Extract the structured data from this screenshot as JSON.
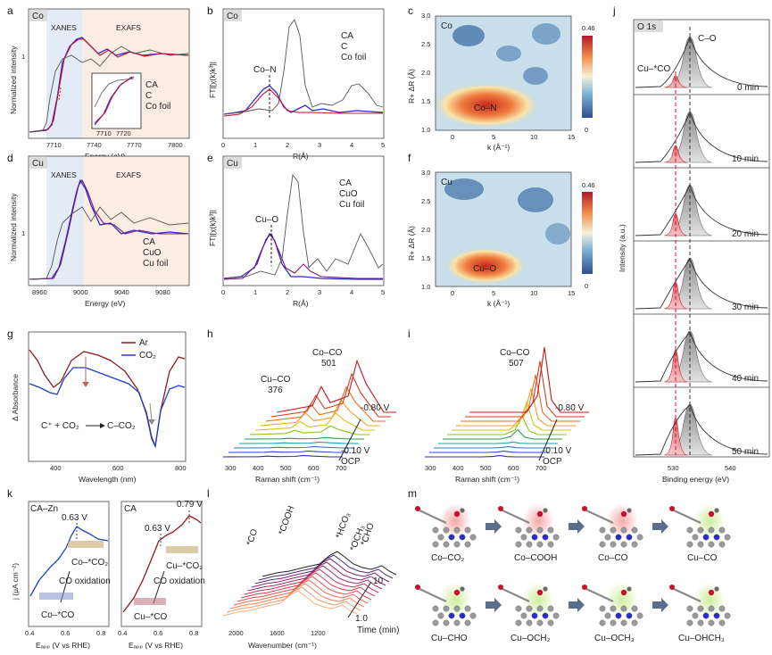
{
  "panels": {
    "a": {
      "letter": "a",
      "tag": "Co",
      "region1": "XANES",
      "region2": "EXAFS",
      "ylabel": "Normalized intensity",
      "xlabel": "Energy (eV)",
      "xticks": [
        "7710",
        "7740",
        "7770",
        "7800"
      ],
      "yticks": [
        "1"
      ],
      "legend": [
        "CA",
        "C",
        "Co foil"
      ],
      "inset_ticks": [
        "7710",
        "7720"
      ]
    },
    "b": {
      "letter": "b",
      "tag": "Co",
      "ylabel": "FT|[χ(k)k³]|",
      "xlabel": "R(Å)",
      "xticks": [
        "0",
        "1",
        "2",
        "3",
        "4",
        "5"
      ],
      "legend": [
        "CA",
        "C",
        "Co foil"
      ],
      "annotation": "Co–N"
    },
    "c": {
      "letter": "c",
      "tag": "Co",
      "ylabel": "R+ ΔR (Å)",
      "xlabel": "k (Å⁻¹)",
      "xticks": [
        "0",
        "5",
        "10",
        "15"
      ],
      "yticks": [
        "1.0",
        "1.5",
        "2.0",
        "2.5",
        "3.0"
      ],
      "cbar_max": "0.46",
      "cbar_min": "0",
      "annotation": "Co–N"
    },
    "d": {
      "letter": "d",
      "tag": "Cu",
      "region1": "XANES",
      "region2": "EXAFS",
      "ylabel": "Normalized intensity",
      "xlabel": "Energy (eV)",
      "xticks": [
        "8960",
        "9000",
        "9040",
        "9080"
      ],
      "yticks": [
        "1"
      ],
      "legend": [
        "CA",
        "CuO",
        "Cu foil"
      ]
    },
    "e": {
      "letter": "e",
      "tag": "Cu",
      "ylabel": "FT|[χ(k)k³]|",
      "xlabel": "R(Å)",
      "xticks": [
        "0",
        "1",
        "2",
        "3",
        "4",
        "5"
      ],
      "legend": [
        "CA",
        "CuO",
        "Cu foil"
      ],
      "annotation": "Cu–O"
    },
    "f": {
      "letter": "f",
      "tag": "Cu",
      "ylabel": "R+ ΔR (Å)",
      "xlabel": "k (Å⁻¹)",
      "xticks": [
        "0",
        "5",
        "10",
        "15"
      ],
      "yticks": [
        "1.0",
        "1.5",
        "2.0",
        "2.5",
        "3.0"
      ],
      "cbar_max": "0.46",
      "cbar_min": "0",
      "annotation": "Cu–O"
    },
    "g": {
      "letter": "g",
      "ylabel": "Δ Absorbance",
      "xlabel": "Wavelength (nm)",
      "xticks": [
        "400",
        "600",
        "800"
      ],
      "legend": [
        "Ar",
        "CO₂"
      ],
      "annotation_left": "C⁺ + CO₂",
      "annotation_right": "C–CO₂"
    },
    "h": {
      "letter": "h",
      "xlabel": "Raman shift (cm⁻¹)",
      "xticks": [
        "300",
        "400",
        "500",
        "600",
        "700"
      ],
      "peak1_name": "Cu–CO",
      "peak1_value": "376",
      "peak2_name": "Co–CO",
      "peak2_value": "501",
      "pot_top": "-0.80 V",
      "pot_mid": "-0.10 V",
      "pot_bot": "OCP"
    },
    "i": {
      "letter": "i",
      "xlabel": "Raman shift (cm⁻¹)",
      "xticks": [
        "300",
        "400",
        "500",
        "600",
        "700"
      ],
      "peak_name": "Co–CO",
      "peak_value": "507",
      "pot_top": "-0.80 V",
      "pot_mid": "-0.10 V",
      "pot_bot": "OCP"
    },
    "j": {
      "letter": "j",
      "tag": "O 1s",
      "ylabel": "Intensity (a.u.)",
      "xlabel": "Binding energy (eV)",
      "xticks": [
        "530",
        "540"
      ],
      "peak_left": "Cu–*CO",
      "peak_right": "C–O",
      "times": [
        "0 min",
        "10 min",
        "20 min",
        "30 min",
        "40 min",
        "50 min"
      ]
    },
    "k": {
      "letter": "k",
      "left_tag": "CA–Zn",
      "right_tag": "CA",
      "ylabel": "j (μA cm⁻²)",
      "xlabel": "Eₐₚₚ (V vs RHE)",
      "xticks": [
        "0.4",
        "0.6",
        "0.8"
      ],
      "left_peak": "0.63 V",
      "right_peak1": "0.63 V",
      "right_peak2": "0.79 V",
      "left_top": "Co–*CO₂",
      "left_bot": "Co–*CO",
      "right_top": "Cu–*CO₂",
      "right_bot": "Cu–*CO",
      "oxidation": "CO oxidation"
    },
    "l": {
      "letter": "l",
      "xlabel": "Wavenumber (cm⁻¹)",
      "xticks": [
        "2000",
        "1600",
        "1200"
      ],
      "bands": [
        "*CO",
        "*COOH",
        "*HCO₃",
        "*OCH₃",
        "*CHO"
      ],
      "time_top": "10",
      "time_bot": "1.0",
      "time_label": "Time (min)"
    },
    "m": {
      "letter": "m",
      "row1": [
        "Co–CO₂",
        "Co–COOH",
        "Co–CO",
        "Cu–CO"
      ],
      "row2": [
        "Cu–CHO",
        "Cu–OCH₂",
        "Cu–OCH₃",
        "Cu–OHCH₃"
      ]
    }
  },
  "colors": {
    "ca": "#2b2bc8",
    "c": "#c8102e",
    "foil": "#555555",
    "ar": "#8b1a1a",
    "co2": "#1f3fbf",
    "xanes_bg": "#e8eef8",
    "exafs_bg": "#fbeee6"
  }
}
